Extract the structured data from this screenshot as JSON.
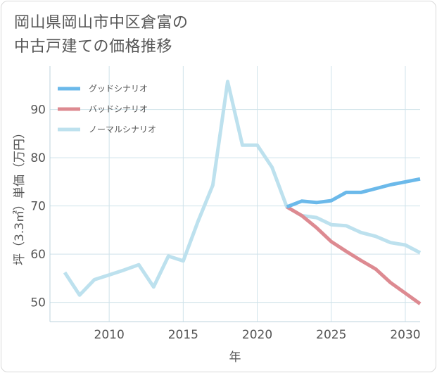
{
  "title": {
    "line1": "岡山県岡山市中区倉富の",
    "line2": "中古戸建ての価格推移"
  },
  "chart_data": {
    "type": "line",
    "xlabel": "年",
    "ylabel": "坪（3.3㎡）単価（万円）",
    "xlim": [
      2006,
      2031
    ],
    "ylim": [
      46,
      99
    ],
    "xticks": [
      2010,
      2015,
      2020,
      2025,
      2030
    ],
    "yticks": [
      50,
      60,
      70,
      80,
      90
    ],
    "legend_position": "top-left",
    "series": [
      {
        "name": "グッドシナリオ",
        "color": "#6bb9ea",
        "x": [
          2022,
          2023,
          2024,
          2025,
          2026,
          2027,
          2028,
          2029,
          2030,
          2031
        ],
        "y": [
          69.8,
          71.0,
          70.7,
          71.1,
          72.8,
          72.8,
          73.6,
          74.4,
          75.0,
          75.6
        ]
      },
      {
        "name": "バッドシナリオ",
        "color": "#dd8a91",
        "x": [
          2022,
          2023,
          2024,
          2025,
          2026,
          2027,
          2028,
          2029,
          2030,
          2031
        ],
        "y": [
          69.8,
          68.0,
          65.5,
          62.6,
          60.6,
          58.7,
          56.9,
          54.1,
          51.9,
          49.7
        ]
      },
      {
        "name": "ノーマルシナリオ",
        "color": "#bde1ee",
        "x": [
          2007,
          2008,
          2009,
          2010,
          2011,
          2012,
          2013,
          2014,
          2015,
          2016,
          2017,
          2018,
          2019,
          2020,
          2021,
          2022,
          2023,
          2024,
          2025,
          2026,
          2027,
          2028,
          2029,
          2030,
          2031
        ],
        "y": [
          56.2,
          51.5,
          54.7,
          55.7,
          56.7,
          57.8,
          53.2,
          59.6,
          58.6,
          66.8,
          74.3,
          95.8,
          82.6,
          82.6,
          78.0,
          69.8,
          68.0,
          67.6,
          66.1,
          65.9,
          64.5,
          63.7,
          62.4,
          61.9,
          60.3
        ]
      }
    ]
  }
}
